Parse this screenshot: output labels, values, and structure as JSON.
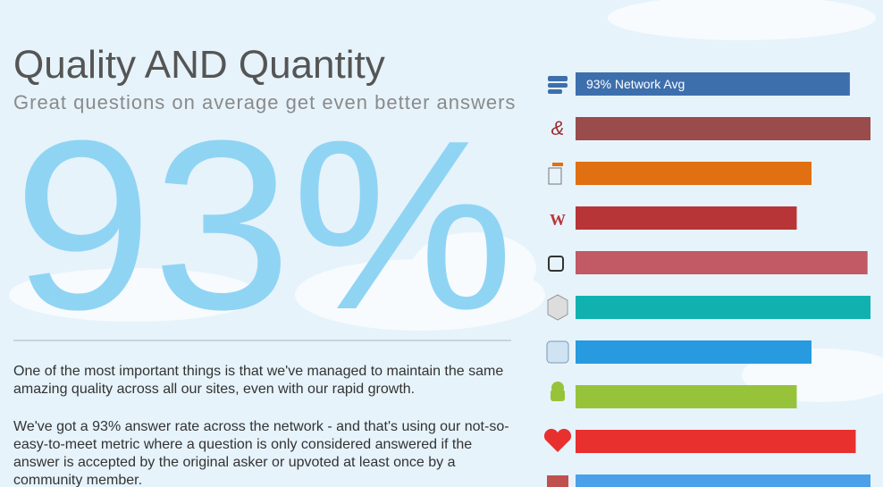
{
  "header": {
    "title": "Quality AND Quantity",
    "subtitle": "Great questions on average get even better answers"
  },
  "big_stat": "93%",
  "paragraphs": [
    "One of the most important things is that we've managed to maintain the same amazing quality across all our sites, even with our rapid growth.",
    "We've got a 93% answer rate across the network - and that's using our not-so-easy-to-meet metric where a question is only considered answered if the answer is accepted by the original asker or upvoted at least once by a community member."
  ],
  "chart_data": {
    "type": "hbar",
    "categories": [
      null,
      null,
      null,
      null,
      null,
      null,
      null,
      null,
      null,
      null
    ],
    "values": [
      93,
      100,
      80,
      75,
      99,
      100,
      80,
      75,
      95,
      100
    ],
    "value_labels": [
      "93% Network Avg",
      null,
      null,
      null,
      null,
      null,
      null,
      null,
      null,
      null
    ],
    "colors": [
      "#3e6fad",
      "#9a4b4c",
      "#e07012",
      "#b83537",
      "#c15a64",
      "#11b1b0",
      "#279ae0",
      "#97c33b",
      "#e8302f",
      "#4aa1ea"
    ],
    "xlim": [
      0,
      100
    ]
  }
}
